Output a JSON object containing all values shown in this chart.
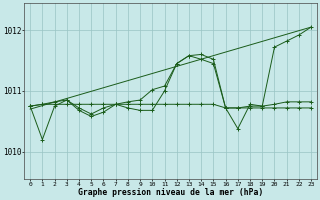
{
  "title": "Graphe pression niveau de la mer (hPa)",
  "bg_color": "#c8e8e8",
  "grid_color": "#99c4c4",
  "line_color": "#1a5c1a",
  "xlim": [
    -0.5,
    23.5
  ],
  "ylim": [
    1009.55,
    1012.45
  ],
  "yticks": [
    1010,
    1011,
    1012
  ],
  "x_labels": [
    "0",
    "1",
    "2",
    "3",
    "4",
    "5",
    "6",
    "7",
    "8",
    "9",
    "10",
    "11",
    "12",
    "13",
    "14",
    "15",
    "16",
    "17",
    "18",
    "19",
    "20",
    "21",
    "22",
    "23"
  ],
  "trend_x": [
    0,
    23
  ],
  "trend_y": [
    1010.7,
    1012.05
  ],
  "series1": [
    1010.75,
    1010.2,
    1010.75,
    1010.85,
    1010.72,
    1010.62,
    1010.72,
    1010.78,
    1010.82,
    1010.85,
    1011.02,
    1011.08,
    1011.45,
    1011.58,
    1011.6,
    1011.52,
    1010.72,
    1010.38,
    1010.78,
    1010.75,
    1011.72,
    1011.82,
    1011.92,
    1012.05
  ],
  "series2": [
    1010.75,
    1010.78,
    1010.78,
    1010.78,
    1010.78,
    1010.78,
    1010.78,
    1010.78,
    1010.78,
    1010.78,
    1010.78,
    1010.78,
    1010.78,
    1010.78,
    1010.78,
    1010.78,
    1010.72,
    1010.72,
    1010.72,
    1010.72,
    1010.72,
    1010.72,
    1010.72,
    1010.72
  ],
  "series3": [
    1010.75,
    1010.78,
    1010.82,
    1010.85,
    1010.68,
    1010.58,
    1010.65,
    1010.78,
    1010.72,
    1010.68,
    1010.68,
    1011.0,
    1011.45,
    1011.58,
    1011.52,
    1011.45,
    1010.72,
    1010.72,
    1010.75,
    1010.75,
    1010.78,
    1010.82,
    1010.82,
    1010.82
  ]
}
